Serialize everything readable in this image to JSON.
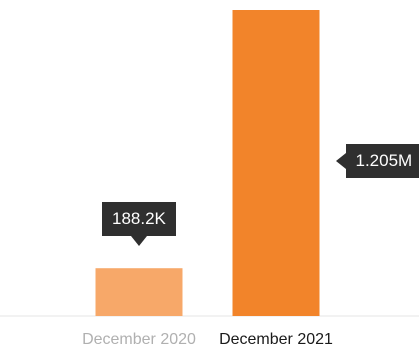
{
  "chart_data": {
    "type": "bar",
    "categories": [
      "December 2020",
      "December 2021"
    ],
    "values": [
      188200,
      1205000
    ],
    "data_labels": [
      "188.2K",
      "1.205M"
    ],
    "ylim": [
      0,
      1205000
    ],
    "grid": false,
    "legend": "none",
    "highlighted_category": "December 2021",
    "colors": {
      "bars": [
        "#f7a869",
        "#f2842a"
      ],
      "category_labels": [
        "#b0b0b0",
        "#1a1a1a"
      ],
      "tooltip_bg": "#2f2f2f",
      "tooltip_text": "#ffffff",
      "baseline": "#e6e6e6"
    }
  }
}
